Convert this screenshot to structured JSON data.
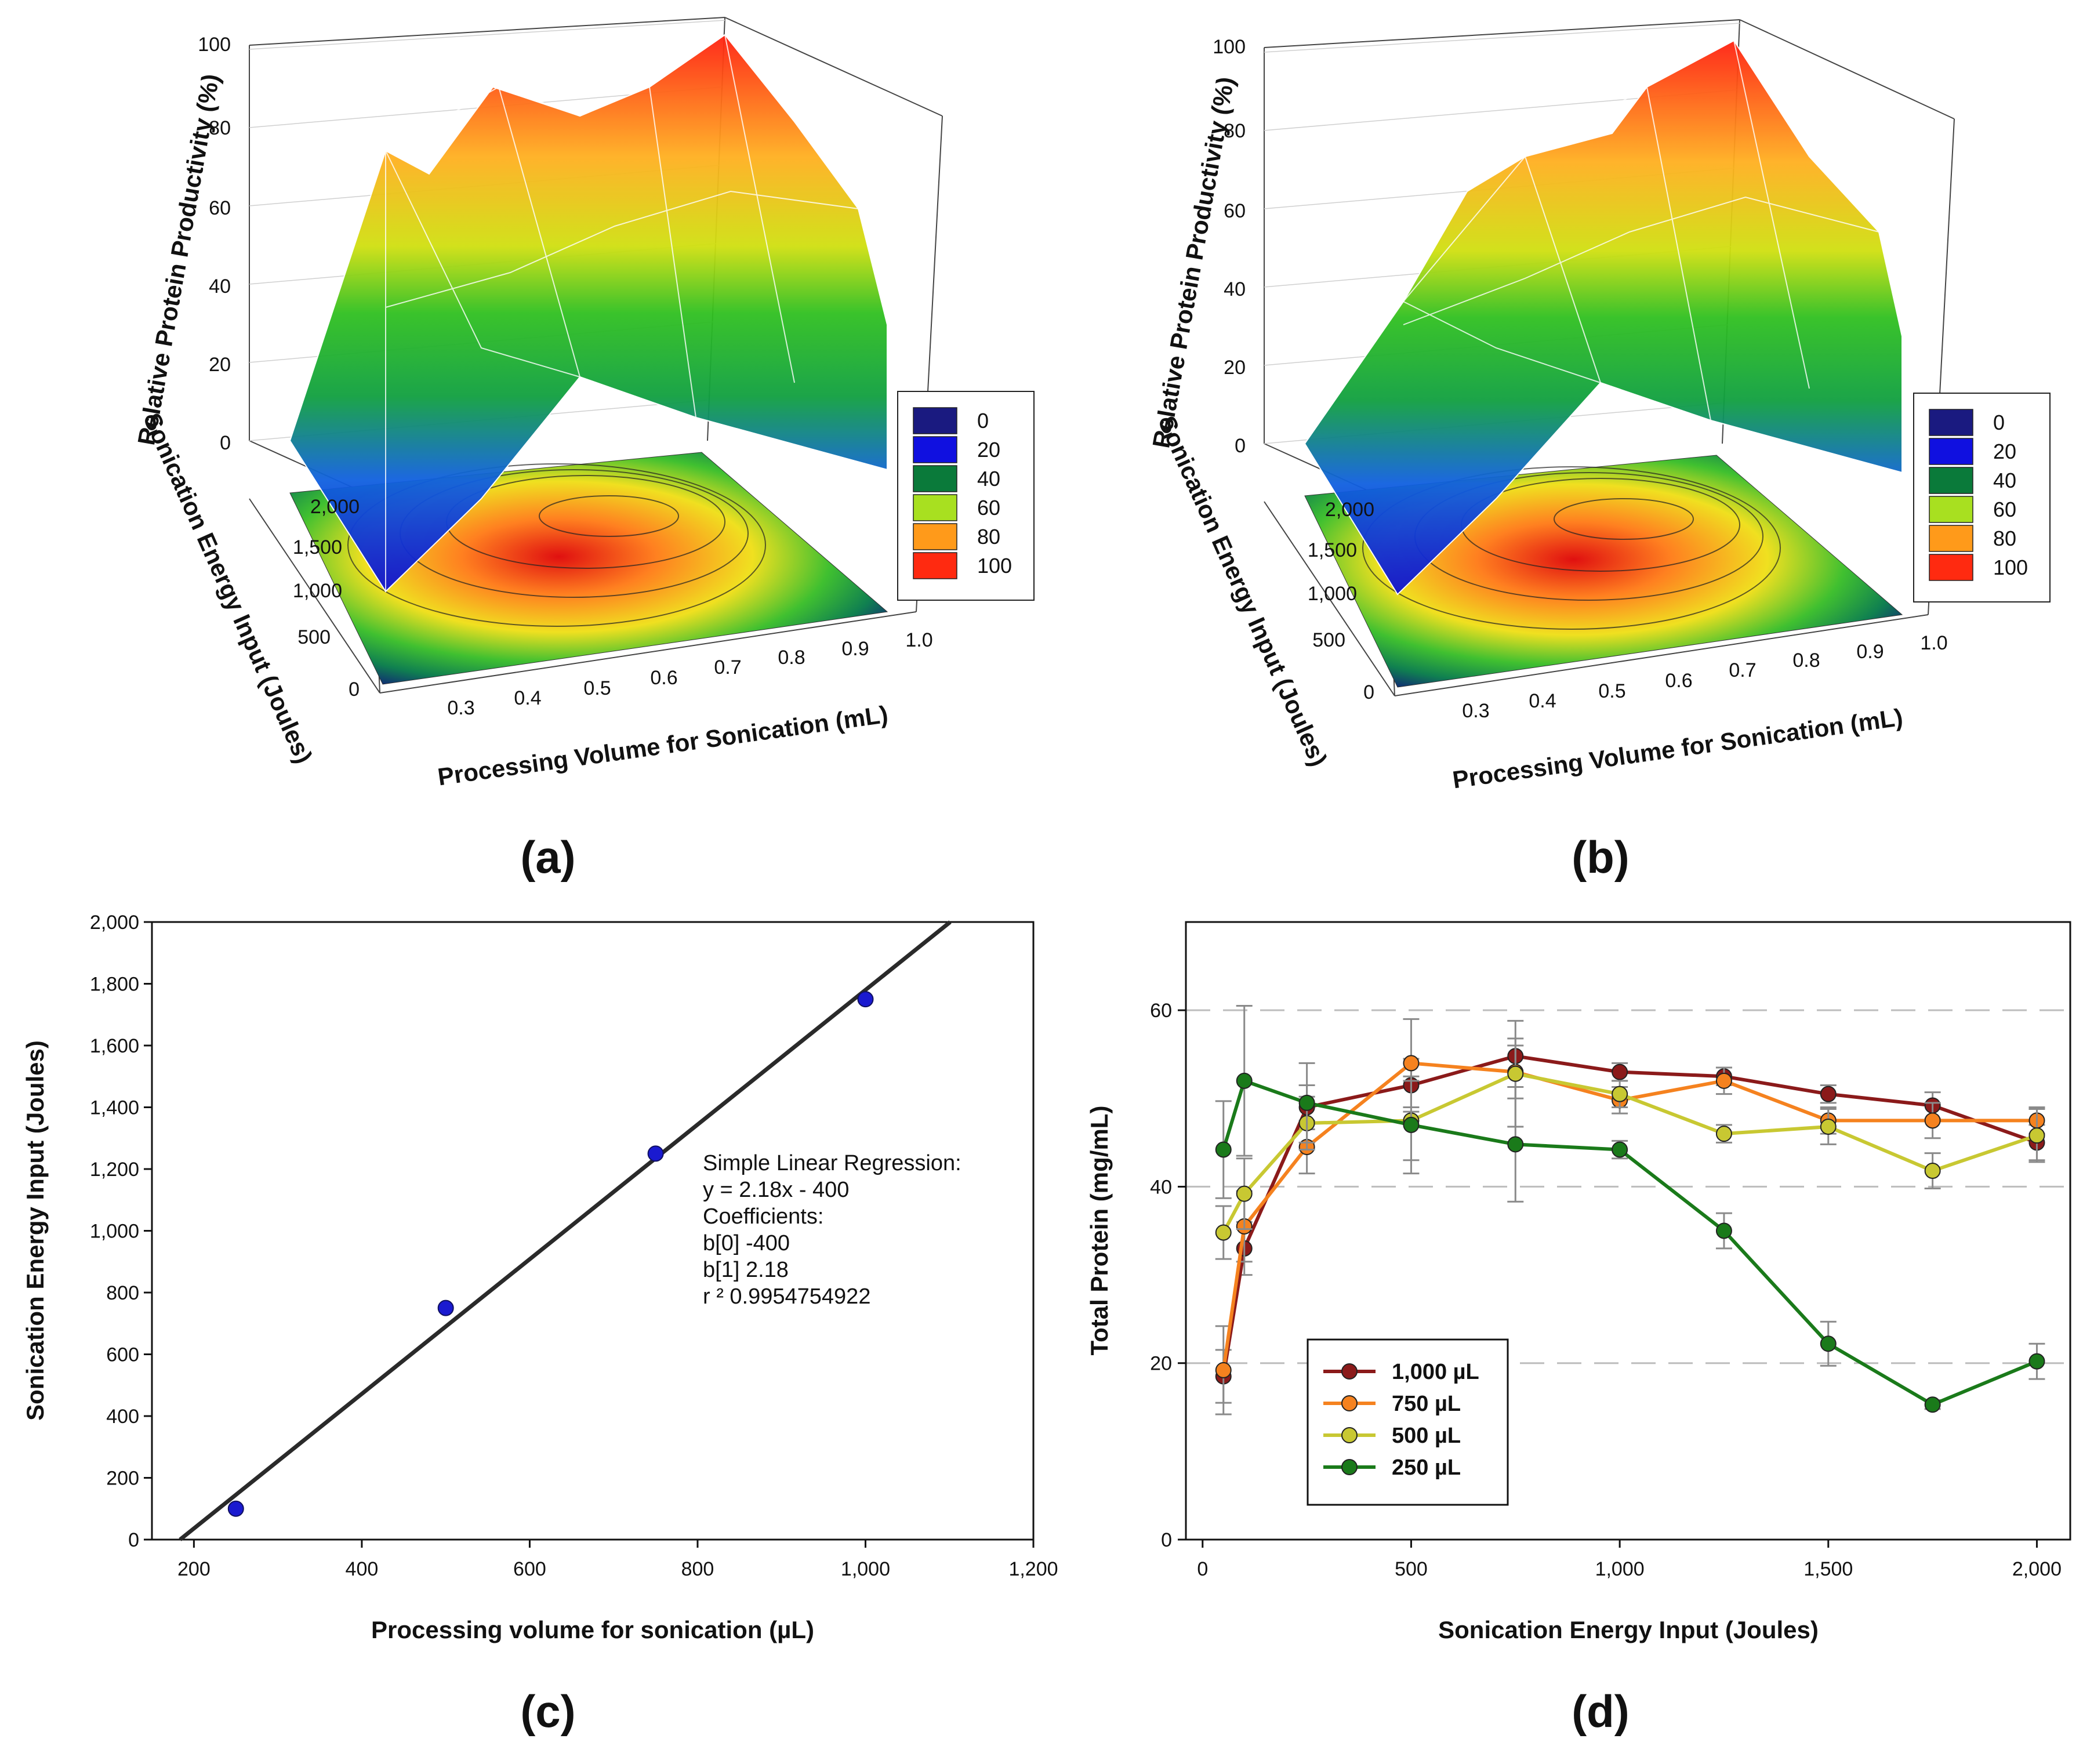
{
  "panels": {
    "a": {
      "label": "(a)"
    },
    "b": {
      "label": "(b)"
    },
    "c": {
      "label": "(c)"
    },
    "d": {
      "label": "(d)"
    }
  },
  "chart_data": [
    {
      "id": "a",
      "type": "surface3d",
      "zlabel": "Relative Protein Productivity (%)",
      "ylabel": "Sonication Energy Input (Joules)",
      "xlabel": "Processing Volume for Sonication (mL)",
      "zticks": [
        "0",
        "20",
        "40",
        "60",
        "80",
        "100"
      ],
      "yticks": [
        "0",
        "500",
        "1,000",
        "1,500",
        "2,000"
      ],
      "xticks": [
        "0.3",
        "0.4",
        "0.5",
        "0.6",
        "0.7",
        "0.8",
        "0.9",
        "1.0"
      ],
      "legend": [
        "0",
        "20",
        "40",
        "60",
        "80",
        "100"
      ],
      "legend_colors": [
        "#1a1a80",
        "#1010e0",
        "#0a7a3a",
        "#a8e020",
        "#ff9a1a",
        "#ff2a10"
      ]
    },
    {
      "id": "b",
      "type": "surface3d",
      "zlabel": "Relative Protein Productivity (%)",
      "ylabel": "Sonication Energy Input (Joules)",
      "xlabel": "Processing Volume for Sonication (mL)",
      "zticks": [
        "0",
        "20",
        "40",
        "60",
        "80",
        "100"
      ],
      "yticks": [
        "0",
        "500",
        "1,000",
        "1,500",
        "2,000"
      ],
      "xticks": [
        "0.3",
        "0.4",
        "0.5",
        "0.6",
        "0.7",
        "0.8",
        "0.9",
        "1.0"
      ],
      "legend": [
        "0",
        "20",
        "40",
        "60",
        "80",
        "100"
      ],
      "legend_colors": [
        "#1a1a80",
        "#1010e0",
        "#0a7a3a",
        "#a8e020",
        "#ff9a1a",
        "#ff2a10"
      ]
    },
    {
      "id": "c",
      "type": "scatter",
      "xlabel": "Processing volume for sonication (µL)",
      "ylabel": "Sonication Energy Input (Joules)",
      "xlim": [
        150,
        1200
      ],
      "ylim": [
        0,
        2000
      ],
      "xticks": [
        200,
        400,
        600,
        800,
        1000,
        1200
      ],
      "xtick_labels": [
        "200",
        "400",
        "600",
        "800",
        "1,000",
        "1,200"
      ],
      "yticks": [
        0,
        200,
        400,
        600,
        800,
        1000,
        1200,
        1400,
        1600,
        1800,
        2000
      ],
      "ytick_labels": [
        "0",
        "200",
        "400",
        "600",
        "800",
        "1,000",
        "1,200",
        "1,400",
        "1,600",
        "1,800",
        "2,000"
      ],
      "points": {
        "x": [
          250,
          500,
          750,
          1000
        ],
        "y": [
          100,
          750,
          1250,
          1750
        ]
      },
      "fit": {
        "slope": 2.18,
        "intercept": -400
      },
      "annotation": [
        "Simple Linear Regression:",
        "y = 2.18x - 400",
        "Coefficients:",
        "b[0]   -400",
        "b[1]   2.18",
        "r ²   0.9954754922"
      ]
    },
    {
      "id": "d",
      "type": "line",
      "xlabel": "Sonication Energy Input (Joules)",
      "ylabel": "Total Protein (mg/mL)",
      "xlim": [
        -40,
        2080
      ],
      "ylim": [
        0,
        70
      ],
      "xticks": [
        0,
        500,
        1000,
        1500,
        2000
      ],
      "xtick_labels": [
        "0",
        "500",
        "1,000",
        "1,500",
        "2,000"
      ],
      "yticks": [
        0,
        20,
        40,
        60
      ],
      "ytick_labels": [
        "0",
        "20",
        "40",
        "60"
      ],
      "grid_y": [
        20,
        40,
        60
      ],
      "x": [
        50,
        100,
        250,
        500,
        750,
        1000,
        1250,
        1500,
        1750,
        2000
      ],
      "series": [
        {
          "name": "1,000 µL",
          "color": "#8b1a1a",
          "values": [
            18.5,
            33,
            49,
            51.5,
            54.8,
            53,
            52.5,
            50.5,
            49.2,
            45
          ],
          "errors": [
            3,
            3,
            2.5,
            3,
            2,
            1,
            1,
            1,
            1.5,
            2
          ]
        },
        {
          "name": "750 µL",
          "color": "#f5821f",
          "values": [
            19.2,
            35.5,
            44.5,
            54,
            53,
            49.8,
            52,
            47.5,
            47.5,
            47.5
          ],
          "errors": [
            5,
            4,
            3,
            5,
            3,
            1.5,
            1.5,
            1.5,
            2,
            1.5
          ]
        },
        {
          "name": "500 µL",
          "color": "#c8c832",
          "values": [
            34.8,
            39.2,
            47.2,
            47.5,
            52.8,
            50.5,
            46,
            46.8,
            41.8,
            45.8
          ],
          "errors": [
            3,
            4,
            3,
            4.5,
            6,
            1.5,
            1,
            2,
            2,
            3
          ]
        },
        {
          "name": "250 µL",
          "color": "#1a7a1a",
          "values": [
            44.2,
            52,
            49.5,
            47,
            44.8,
            44.2,
            35,
            22.2,
            15.3,
            20.2
          ],
          "errors": [
            5.5,
            8.5,
            4.5,
            5.5,
            6.5,
            1,
            2,
            2.5,
            0.5,
            2
          ]
        }
      ]
    }
  ]
}
